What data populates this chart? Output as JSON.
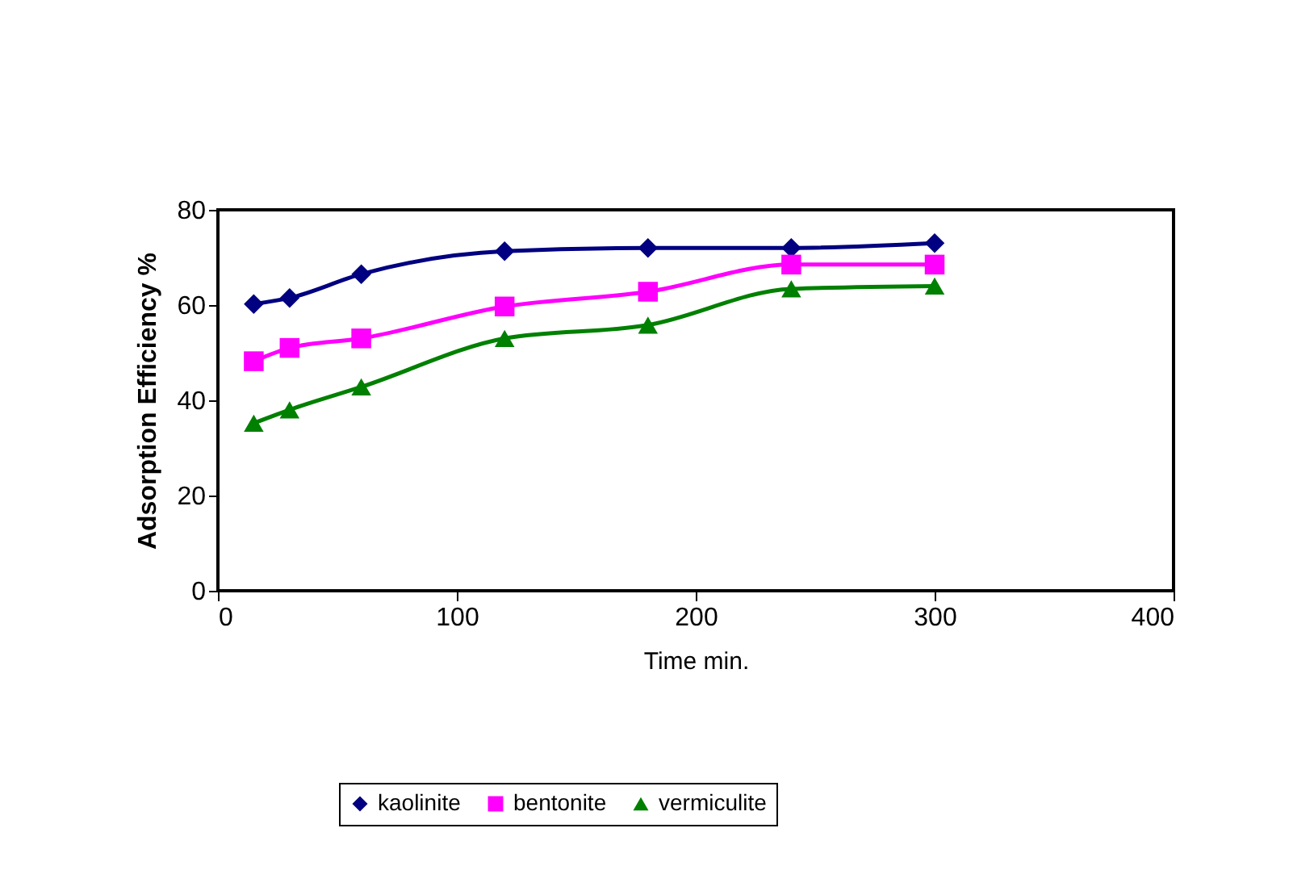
{
  "chart_data": {
    "type": "line",
    "xlabel": "Time min.",
    "ylabel": "Adsorption Efficiency %",
    "x": [
      15,
      30,
      60,
      120,
      180,
      240,
      300
    ],
    "series": [
      {
        "name": "kaolinite",
        "color": "#000080",
        "marker": "diamond",
        "values": [
          60.2,
          61.5,
          66.5,
          71.3,
          72,
          72,
          73
        ]
      },
      {
        "name": "bentonite",
        "color": "#ff00ff",
        "marker": "square",
        "values": [
          48.2,
          51,
          53,
          59.7,
          62.8,
          68.5,
          68.5
        ]
      },
      {
        "name": "vermiculite",
        "color": "#008000",
        "marker": "triangle",
        "values": [
          35.2,
          38,
          42.8,
          53,
          55.8,
          63.4,
          64
        ]
      }
    ],
    "xlim": [
      0,
      400
    ],
    "xticks": [
      0,
      100,
      200,
      300,
      400
    ],
    "ylim": [
      0,
      80
    ],
    "yticks": [
      0,
      20,
      40,
      60,
      80
    ],
    "grid": false,
    "legend": "bottom",
    "line_style": "solid"
  }
}
